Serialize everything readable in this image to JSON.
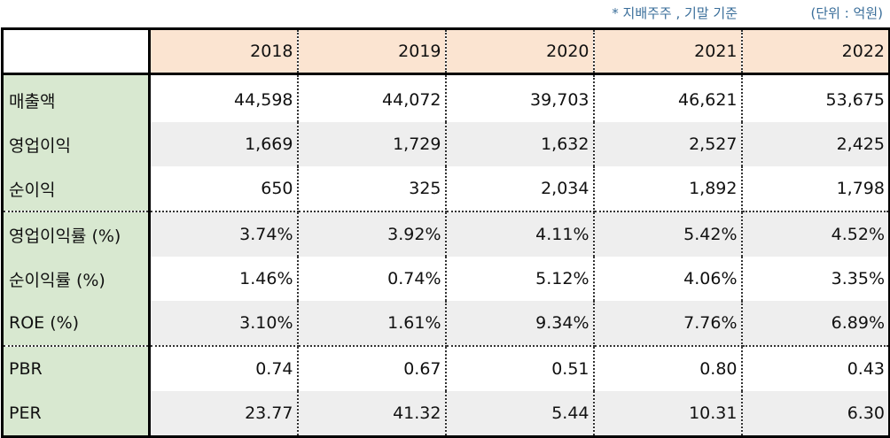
{
  "notes": {
    "basis": "* 지배주주 , 기말 기준",
    "unit": "(단위 : 억원)"
  },
  "colors": {
    "header_bg": "#fbe4d1",
    "label_bg": "#d8e8d0",
    "stripe_bg": "#eeeeee",
    "note_text": "#3a6e9a"
  },
  "table": {
    "corner": "",
    "years": [
      "2018",
      "2019",
      "2020",
      "2021",
      "2022"
    ],
    "rows": [
      {
        "label": "매출액",
        "values": [
          "44,598",
          "44,072",
          "39,703",
          "46,621",
          "53,675"
        ]
      },
      {
        "label": "영업이익",
        "values": [
          "1,669",
          "1,729",
          "1,632",
          "2,527",
          "2,425"
        ]
      },
      {
        "label": "순이익",
        "values": [
          "650",
          "325",
          "2,034",
          "1,892",
          "1,798"
        ]
      },
      {
        "label": "영업이익률 (%)",
        "values": [
          "3.74%",
          "3.92%",
          "4.11%",
          "5.42%",
          "4.52%"
        ]
      },
      {
        "label": "순이익률 (%)",
        "values": [
          "1.46%",
          "0.74%",
          "5.12%",
          "4.06%",
          "3.35%"
        ]
      },
      {
        "label": "ROE (%)",
        "values": [
          "3.10%",
          "1.61%",
          "9.34%",
          "7.76%",
          "6.89%"
        ]
      },
      {
        "label": "PBR",
        "values": [
          "0.74",
          "0.67",
          "0.51",
          "0.80",
          "0.43"
        ]
      },
      {
        "label": "PER",
        "values": [
          "23.77",
          "41.32",
          "5.44",
          "10.31",
          "6.30"
        ]
      }
    ]
  }
}
